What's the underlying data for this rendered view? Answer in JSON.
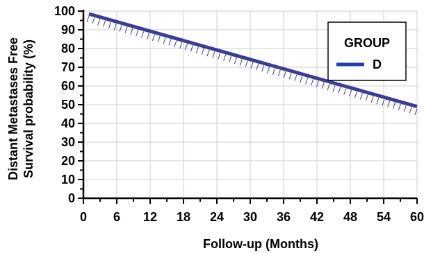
{
  "chart_data": {
    "type": "line",
    "xlabel": "Follow-up (Months)",
    "ylabel_line1": "Distant Metastases Free",
    "ylabel_line2": "Survival probability (%)",
    "xlim": [
      0,
      60
    ],
    "ylim": [
      0,
      100
    ],
    "x_ticks": [
      0,
      6,
      12,
      18,
      24,
      30,
      36,
      42,
      48,
      54,
      60
    ],
    "y_ticks": [
      0,
      10,
      20,
      30,
      40,
      50,
      60,
      70,
      80,
      90,
      100
    ],
    "grid": true,
    "legend": {
      "title": "GROUP",
      "placement": "top-right"
    },
    "series": [
      {
        "name": "D",
        "color": "#3a3c96",
        "x": [
          1,
          60
        ],
        "y": [
          98.5,
          49
        ],
        "censor_ticks": true
      }
    ]
  }
}
